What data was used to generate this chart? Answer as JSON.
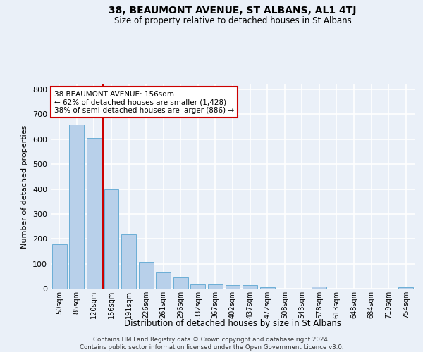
{
  "title": "38, BEAUMONT AVENUE, ST ALBANS, AL1 4TJ",
  "subtitle": "Size of property relative to detached houses in St Albans",
  "xlabel": "Distribution of detached houses by size in St Albans",
  "ylabel": "Number of detached properties",
  "footer_line1": "Contains HM Land Registry data © Crown copyright and database right 2024.",
  "footer_line2": "Contains public sector information licensed under the Open Government Licence v3.0.",
  "bar_labels": [
    "50sqm",
    "85sqm",
    "120sqm",
    "156sqm",
    "191sqm",
    "226sqm",
    "261sqm",
    "296sqm",
    "332sqm",
    "367sqm",
    "402sqm",
    "437sqm",
    "472sqm",
    "508sqm",
    "543sqm",
    "578sqm",
    "613sqm",
    "648sqm",
    "684sqm",
    "719sqm",
    "754sqm"
  ],
  "bar_values": [
    178,
    660,
    605,
    400,
    218,
    107,
    64,
    45,
    18,
    18,
    15,
    13,
    7,
    0,
    0,
    8,
    0,
    0,
    0,
    0,
    7
  ],
  "bar_color": "#b8d0ea",
  "bar_edge_color": "#6baed6",
  "background_color": "#eaf0f8",
  "grid_color": "#ffffff",
  "vline_color": "#cc0000",
  "annotation_text": "38 BEAUMONT AVENUE: 156sqm\n← 62% of detached houses are smaller (1,428)\n38% of semi-detached houses are larger (886) →",
  "annotation_box_facecolor": "#ffffff",
  "annotation_box_edgecolor": "#cc0000",
  "ylim": [
    0,
    820
  ],
  "yticks": [
    0,
    100,
    200,
    300,
    400,
    500,
    600,
    700,
    800
  ]
}
